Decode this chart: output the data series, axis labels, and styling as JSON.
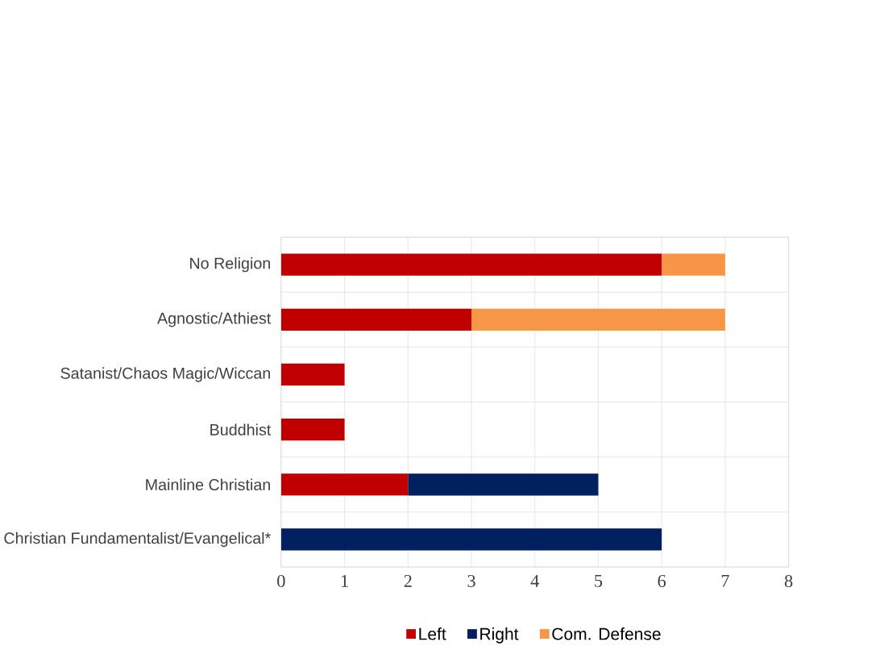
{
  "chart_data": {
    "type": "bar",
    "orientation": "horizontal",
    "stacked": true,
    "categories": [
      "No Religion",
      "Agnostic/Athiest",
      "Satanist/Chaos Magic/Wiccan",
      "Buddhist",
      "Mainline Christian",
      "Christian Fundamentalist/Evangelical*"
    ],
    "series": [
      {
        "name": "Left",
        "color": "#c00000",
        "values": [
          6,
          3,
          1,
          1,
          2,
          0
        ]
      },
      {
        "name": "Right",
        "color": "#002060",
        "values": [
          0,
          0,
          0,
          0,
          3,
          6
        ]
      },
      {
        "name": "Com. Defense",
        "color": "#f79646",
        "values": [
          1,
          4,
          0,
          0,
          0,
          0
        ]
      }
    ],
    "xlim": [
      0,
      8
    ],
    "xticks": [
      0,
      1,
      2,
      3,
      4,
      5,
      6,
      7,
      8
    ],
    "grid": true,
    "legend": "bottom"
  }
}
